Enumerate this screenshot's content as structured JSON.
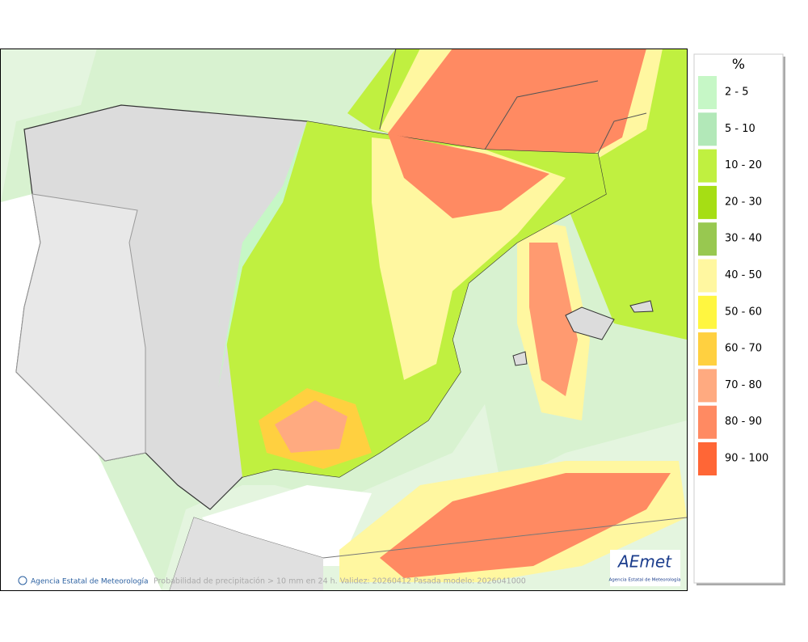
{
  "unit": "%",
  "legend": [
    {
      "label": "2 - 5",
      "color": "#c6f7c6"
    },
    {
      "label": "5 - 10",
      "color": "#b2e8b8"
    },
    {
      "label": "10 - 20",
      "color": "#c0f040"
    },
    {
      "label": "20 - 30",
      "color": "#a6de14"
    },
    {
      "label": "30 - 40",
      "color": "#98c850"
    },
    {
      "label": "40 - 50",
      "color": "#fff7a0"
    },
    {
      "label": "50 - 60",
      "color": "#fff640"
    },
    {
      "label": "60 - 70",
      "color": "#ffd040"
    },
    {
      "label": "70 - 80",
      "color": "#ffaa80"
    },
    {
      "label": "80 - 90",
      "color": "#ff8a62"
    },
    {
      "label": "90 - 100",
      "color": "#ff6636"
    }
  ],
  "footer": {
    "agency": "Agencia Estatal de Meteorología",
    "caption": "Probabilidad de precipitación > 10 mm en 24 h. Validez: 20260412 Pasada modelo: 2026041000"
  },
  "logo": {
    "name": "AEmet",
    "subtitle": "Agencia Estatal de Meteorología"
  }
}
